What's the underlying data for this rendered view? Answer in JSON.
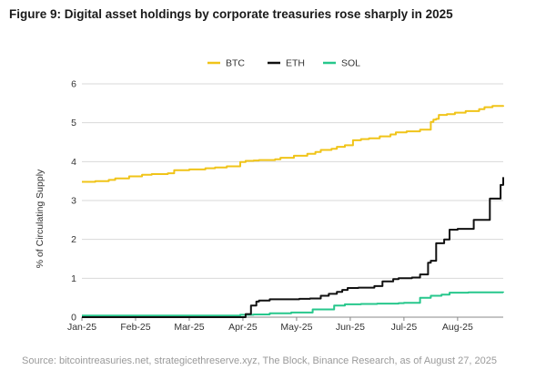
{
  "title": "Figure 9: Digital asset holdings by corporate treasuries rose sharply in 2025",
  "source": "Source: bitcointreasuries.net, strategicethreserve.xyz, The Block, Binance Research, as of August 27, 2025",
  "colors": {
    "BTC": "#F0C419",
    "ETH": "#111111",
    "SOL": "#27C78C",
    "grid": "#d9d9d9",
    "axis": "#888888"
  },
  "chart_data": {
    "type": "line",
    "title": "Figure 9: Digital asset holdings by corporate treasuries rose sharply in 2025",
    "xlabel": "",
    "ylabel": "% of Circulating Supply",
    "ylim": [
      0,
      6
    ],
    "yticks": [
      0,
      1,
      2,
      3,
      4,
      5,
      6
    ],
    "xlim": [
      0,
      7.85
    ],
    "xtick_positions": [
      0,
      1,
      2,
      3,
      4,
      5,
      6,
      7
    ],
    "xtick_labels": [
      "Jan-25",
      "Feb-25",
      "Mar-25",
      "Apr-25",
      "May-25",
      "Jun-25",
      "Jul-25",
      "Aug-25"
    ],
    "legend_position": "top-center",
    "grid": "horizontal",
    "series": [
      {
        "name": "BTC",
        "color": "#F0C419",
        "x": [
          0,
          0.25,
          0.5,
          0.62,
          0.88,
          1.12,
          1.3,
          1.6,
          1.72,
          2.0,
          2.3,
          2.48,
          2.7,
          2.95,
          3.05,
          3.2,
          3.3,
          3.6,
          3.7,
          3.95,
          4.2,
          4.35,
          4.45,
          4.65,
          4.75,
          4.9,
          5.05,
          5.2,
          5.35,
          5.55,
          5.75,
          5.85,
          6.05,
          6.3,
          6.5,
          6.55,
          6.6,
          6.65,
          6.8,
          6.95,
          7.15,
          7.4,
          7.5,
          7.65,
          7.85
        ],
        "y": [
          3.48,
          3.5,
          3.53,
          3.57,
          3.62,
          3.66,
          3.68,
          3.7,
          3.78,
          3.8,
          3.83,
          3.85,
          3.88,
          3.99,
          4.02,
          4.03,
          4.04,
          4.06,
          4.1,
          4.15,
          4.2,
          4.25,
          4.3,
          4.33,
          4.38,
          4.42,
          4.55,
          4.58,
          4.6,
          4.65,
          4.7,
          4.75,
          4.78,
          4.82,
          5.02,
          5.08,
          5.1,
          5.2,
          5.22,
          5.26,
          5.3,
          5.35,
          5.4,
          5.43,
          5.45
        ]
      },
      {
        "name": "ETH",
        "color": "#111111",
        "x": [
          0,
          2.95,
          3.05,
          3.15,
          3.25,
          3.3,
          3.5,
          3.8,
          4.05,
          4.25,
          4.45,
          4.6,
          4.75,
          4.85,
          4.95,
          5.15,
          5.3,
          5.45,
          5.6,
          5.8,
          5.9,
          6.0,
          6.15,
          6.3,
          6.45,
          6.5,
          6.6,
          6.75,
          6.85,
          7.0,
          7.1,
          7.3,
          7.45,
          7.6,
          7.7,
          7.8,
          7.85
        ],
        "y": [
          0,
          0,
          0.08,
          0.3,
          0.4,
          0.43,
          0.46,
          0.46,
          0.47,
          0.48,
          0.55,
          0.6,
          0.65,
          0.7,
          0.75,
          0.76,
          0.76,
          0.8,
          0.92,
          0.98,
          1.0,
          1.0,
          1.02,
          1.1,
          1.4,
          1.45,
          1.9,
          2.0,
          2.25,
          2.27,
          2.27,
          2.5,
          2.5,
          3.05,
          3.05,
          3.4,
          3.6
        ]
      },
      {
        "name": "SOL",
        "color": "#27C78C",
        "x": [
          0,
          2.95,
          3.2,
          3.5,
          3.9,
          4.3,
          4.7,
          4.9,
          5.2,
          5.5,
          5.9,
          6.0,
          6.3,
          6.5,
          6.7,
          6.85,
          7.2,
          7.85
        ],
        "y": [
          0.04,
          0.06,
          0.07,
          0.1,
          0.12,
          0.2,
          0.3,
          0.33,
          0.34,
          0.35,
          0.36,
          0.37,
          0.5,
          0.55,
          0.58,
          0.63,
          0.64,
          0.63
        ]
      }
    ]
  }
}
